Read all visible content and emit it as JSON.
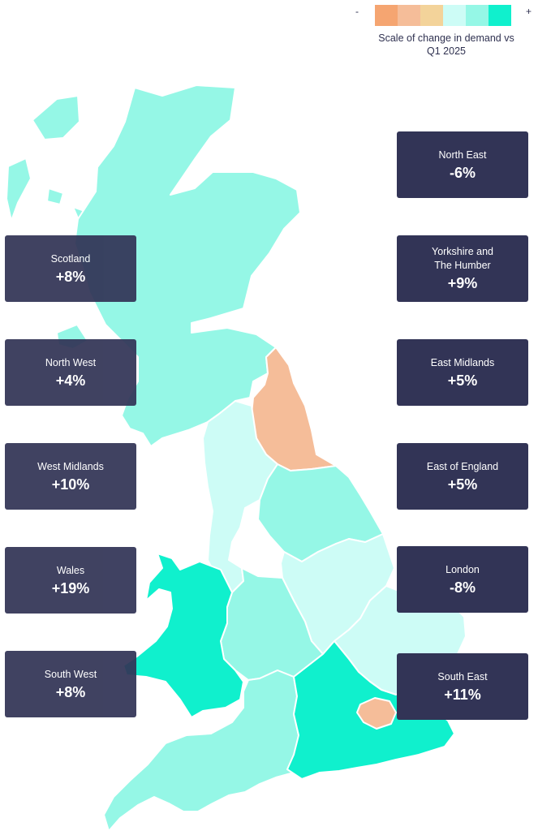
{
  "legend": {
    "minus": "-",
    "plus": "+",
    "title": "Scale of change in demand vs Q1 2025",
    "colors": [
      "#f5a571",
      "#f5bd99",
      "#f3d39a",
      "#cdfcf6",
      "#95f7e6",
      "#10f0cd"
    ]
  },
  "regions": [
    {
      "id": "north-east",
      "name": "North East",
      "change": "-6%",
      "color": "#f5bd99"
    },
    {
      "id": "scotland",
      "name": "Scotland",
      "change": "+8%",
      "color": "#95f7e6"
    },
    {
      "id": "yorkshire",
      "name": "Yorkshire and\nThe Humber",
      "change": "+9%",
      "color": "#95f7e6"
    },
    {
      "id": "north-west",
      "name": "North West",
      "change": "+4%",
      "color": "#cdfcf6"
    },
    {
      "id": "east-midlands",
      "name": "East Midlands",
      "change": "+5%",
      "color": "#cdfcf6"
    },
    {
      "id": "west-midlands",
      "name": "West Midlands",
      "change": "+10%",
      "color": "#95f7e6"
    },
    {
      "id": "east-of-england",
      "name": "East of England",
      "change": "+5%",
      "color": "#cdfcf6"
    },
    {
      "id": "wales",
      "name": "Wales",
      "change": "+19%",
      "color": "#10f0cd"
    },
    {
      "id": "london",
      "name": "London",
      "change": "-8%",
      "color": "#f5bd99"
    },
    {
      "id": "south-west",
      "name": "South West",
      "change": "+8%",
      "color": "#95f7e6"
    },
    {
      "id": "south-east",
      "name": "South East",
      "change": "+11%",
      "color": "#10f0cd"
    }
  ]
}
